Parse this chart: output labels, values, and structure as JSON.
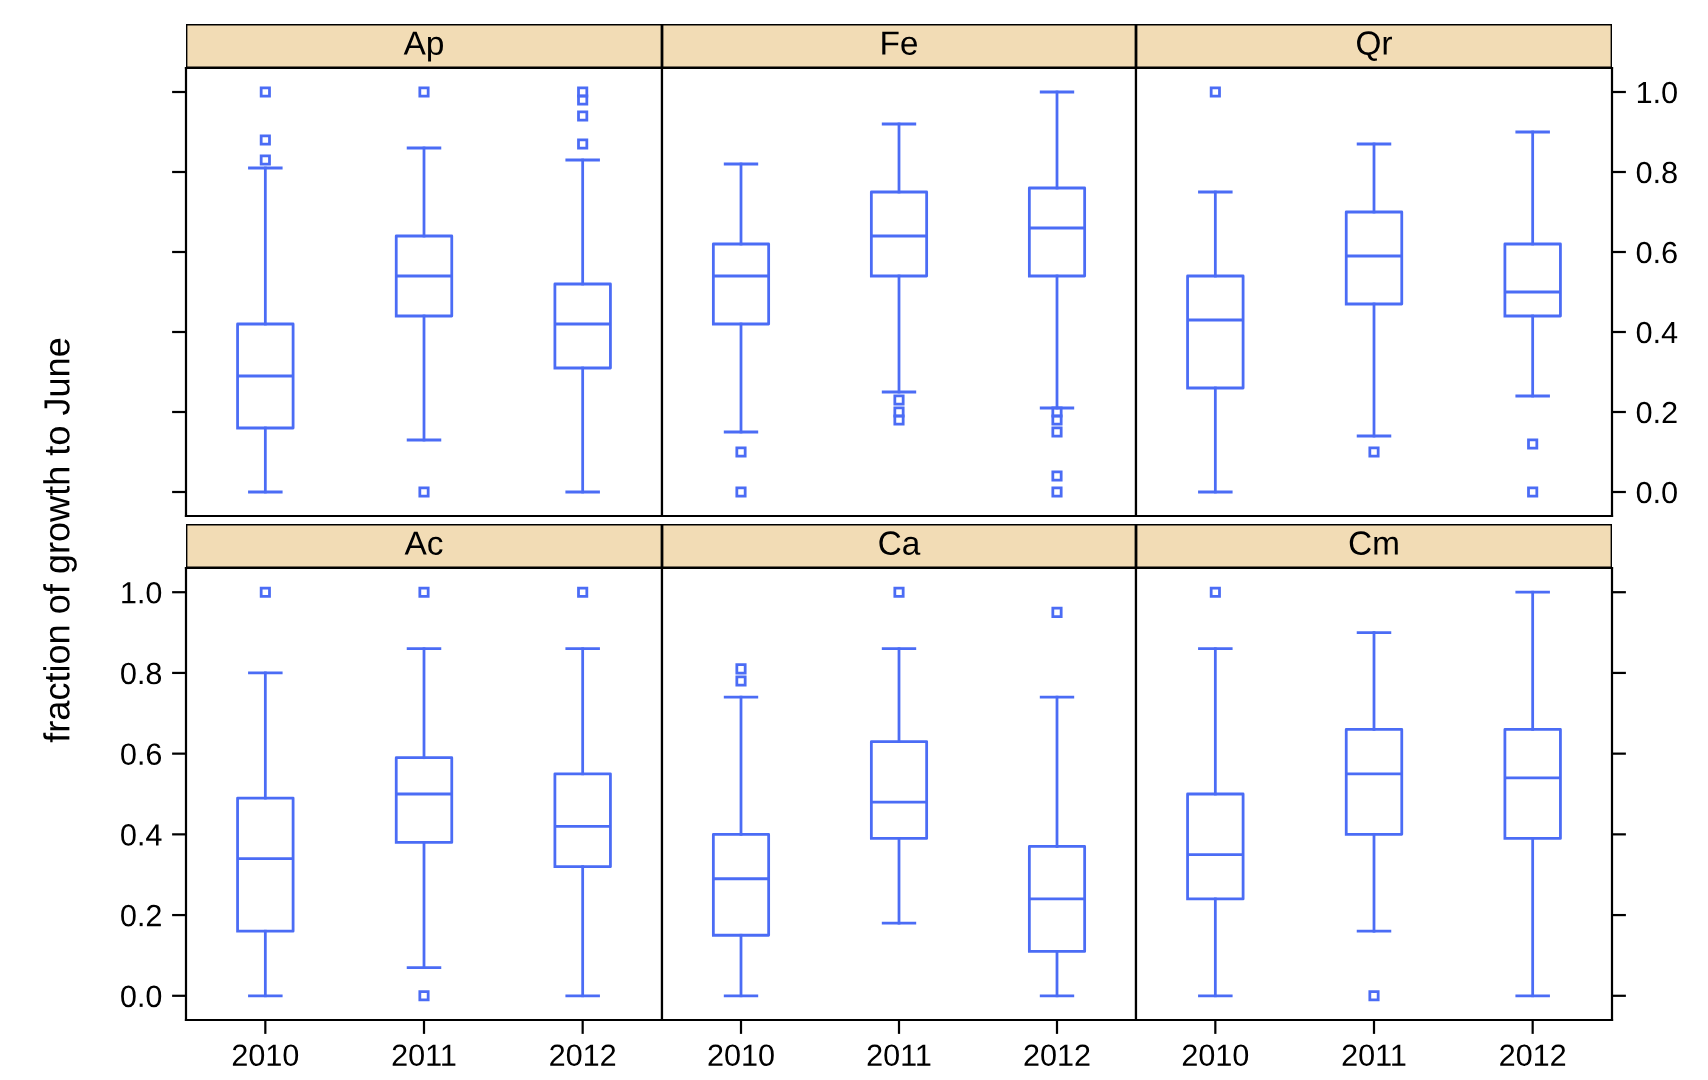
{
  "chart_data": [
    {
      "type": "box",
      "title": "Ap",
      "categories": [
        "2010",
        "2011",
        "2012"
      ],
      "color": "#4b6cf5",
      "ylim": [
        -0.06,
        1.06
      ],
      "yticks": [
        {
          "value": 0,
          "label": null
        },
        {
          "value": 0.2,
          "label": null
        },
        {
          "value": 0.4,
          "label": null
        },
        {
          "value": 0.6,
          "label": null
        },
        {
          "value": 0.8,
          "label": null
        },
        {
          "value": 1,
          "label": null
        }
      ],
      "tick_labels": false,
      "grid": false,
      "boxes": [
        {
          "low": 0,
          "q1": 0.16,
          "median": 0.29,
          "q3": 0.42,
          "high": 0.81,
          "outliers": [
            0.83,
            0.88,
            1.0
          ]
        },
        {
          "low": 0.13,
          "q1": 0.44,
          "median": 0.54,
          "q3": 0.64,
          "high": 0.86,
          "outliers": [
            0,
            1.0
          ]
        },
        {
          "low": 0,
          "q1": 0.31,
          "median": 0.42,
          "q3": 0.52,
          "high": 0.83,
          "outliers": [
            0.87,
            0.94,
            0.98,
            1.0
          ]
        }
      ]
    },
    {
      "type": "box",
      "title": "Fe",
      "categories": [
        "2010",
        "2011",
        "2012"
      ],
      "color": "#4b6cf5",
      "ylim": [
        -0.06,
        1.06
      ],
      "yticks": [
        {
          "value": 0,
          "label": null
        },
        {
          "value": 0.2,
          "label": null
        },
        {
          "value": 0.4,
          "label": null
        },
        {
          "value": 0.6,
          "label": null
        },
        {
          "value": 0.8,
          "label": null
        },
        {
          "value": 1,
          "label": null
        }
      ],
      "tick_labels": false,
      "grid": false,
      "boxes": [
        {
          "low": 0.15,
          "q1": 0.42,
          "median": 0.54,
          "q3": 0.62,
          "high": 0.82,
          "outliers": [
            0,
            0.1
          ]
        },
        {
          "low": 0.25,
          "q1": 0.54,
          "median": 0.64,
          "q3": 0.75,
          "high": 0.92,
          "outliers": [
            0.18,
            0.2,
            0.23
          ]
        },
        {
          "low": 0.21,
          "q1": 0.54,
          "median": 0.66,
          "q3": 0.76,
          "high": 1.0,
          "outliers": [
            0,
            0.04,
            0.15,
            0.18,
            0.2
          ]
        }
      ]
    },
    {
      "type": "box",
      "title": "Qr",
      "categories": [
        "2010",
        "2011",
        "2012"
      ],
      "color": "#4b6cf5",
      "ylim": [
        -0.06,
        1.06
      ],
      "yticks": [
        {
          "value": 0,
          "label": "0.0"
        },
        {
          "value": 0.2,
          "label": "0.2"
        },
        {
          "value": 0.4,
          "label": "0.4"
        },
        {
          "value": 0.6,
          "label": "0.6"
        },
        {
          "value": 0.8,
          "label": "0.8"
        },
        {
          "value": 1,
          "label": "1.0"
        }
      ],
      "tick_labels": "y",
      "grid": false,
      "boxes": [
        {
          "low": 0,
          "q1": 0.26,
          "median": 0.43,
          "q3": 0.54,
          "high": 0.75,
          "outliers": [
            1.0
          ]
        },
        {
          "low": 0.14,
          "q1": 0.47,
          "median": 0.59,
          "q3": 0.7,
          "high": 0.87,
          "outliers": [
            0.1
          ]
        },
        {
          "low": 0.24,
          "q1": 0.44,
          "median": 0.5,
          "q3": 0.62,
          "high": 0.9,
          "outliers": [
            0,
            0.12
          ]
        }
      ]
    },
    {
      "type": "box",
      "title": "Ac",
      "categories": [
        "2010",
        "2011",
        "2012"
      ],
      "color": "#4b6cf5",
      "ylabel": "fraction of growth to June",
      "ylim": [
        -0.06,
        1.06
      ],
      "yticks": [
        {
          "value": 0,
          "label": "0.0"
        },
        {
          "value": 0.2,
          "label": "0.2"
        },
        {
          "value": 0.4,
          "label": "0.4"
        },
        {
          "value": 0.6,
          "label": "0.6"
        },
        {
          "value": 0.8,
          "label": "0.8"
        },
        {
          "value": 1,
          "label": "1.0"
        }
      ],
      "grid": false,
      "boxes": [
        {
          "low": 0,
          "q1": 0.16,
          "median": 0.34,
          "q3": 0.49,
          "high": 0.8,
          "outliers": [
            1.0
          ]
        },
        {
          "low": 0.07,
          "q1": 0.38,
          "median": 0.5,
          "q3": 0.59,
          "high": 0.86,
          "outliers": [
            0,
            1.0
          ]
        },
        {
          "low": 0,
          "q1": 0.32,
          "median": 0.42,
          "q3": 0.55,
          "high": 0.86,
          "outliers": [
            1.0
          ]
        }
      ]
    },
    {
      "type": "box",
      "title": "Ca",
      "categories": [
        "2010",
        "2011",
        "2012"
      ],
      "color": "#4b6cf5",
      "ylim": [
        -0.06,
        1.06
      ],
      "yticks": [
        {
          "value": 0,
          "label": null
        },
        {
          "value": 0.2,
          "label": null
        },
        {
          "value": 0.4,
          "label": null
        },
        {
          "value": 0.6,
          "label": null
        },
        {
          "value": 0.8,
          "label": null
        },
        {
          "value": 1,
          "label": null
        }
      ],
      "tick_labels": "x",
      "grid": false,
      "boxes": [
        {
          "low": 0,
          "q1": 0.15,
          "median": 0.29,
          "q3": 0.4,
          "high": 0.74,
          "outliers": [
            0.78,
            0.81
          ]
        },
        {
          "low": 0.18,
          "q1": 0.39,
          "median": 0.48,
          "q3": 0.63,
          "high": 0.86,
          "outliers": [
            1.0
          ]
        },
        {
          "low": 0,
          "q1": 0.11,
          "median": 0.24,
          "q3": 0.37,
          "high": 0.74,
          "outliers": [
            0.95
          ]
        }
      ]
    },
    {
      "type": "box",
      "title": "Cm",
      "categories": [
        "2010",
        "2011",
        "2012"
      ],
      "color": "#4b6cf5",
      "ylim": [
        -0.06,
        1.06
      ],
      "yticks": [
        {
          "value": 0,
          "label": null
        },
        {
          "value": 0.2,
          "label": null
        },
        {
          "value": 0.4,
          "label": null
        },
        {
          "value": 0.6,
          "label": null
        },
        {
          "value": 0.8,
          "label": null
        },
        {
          "value": 1,
          "label": null
        }
      ],
      "tick_labels": "x",
      "grid": false,
      "boxes": [
        {
          "low": 0,
          "q1": 0.24,
          "median": 0.35,
          "q3": 0.5,
          "high": 0.86,
          "outliers": [
            1.0
          ]
        },
        {
          "low": 0.16,
          "q1": 0.4,
          "median": 0.55,
          "q3": 0.66,
          "high": 0.9,
          "outliers": [
            0
          ]
        },
        {
          "low": 0,
          "q1": 0.39,
          "median": 0.54,
          "q3": 0.66,
          "high": 1.0
        }
      ]
    }
  ]
}
